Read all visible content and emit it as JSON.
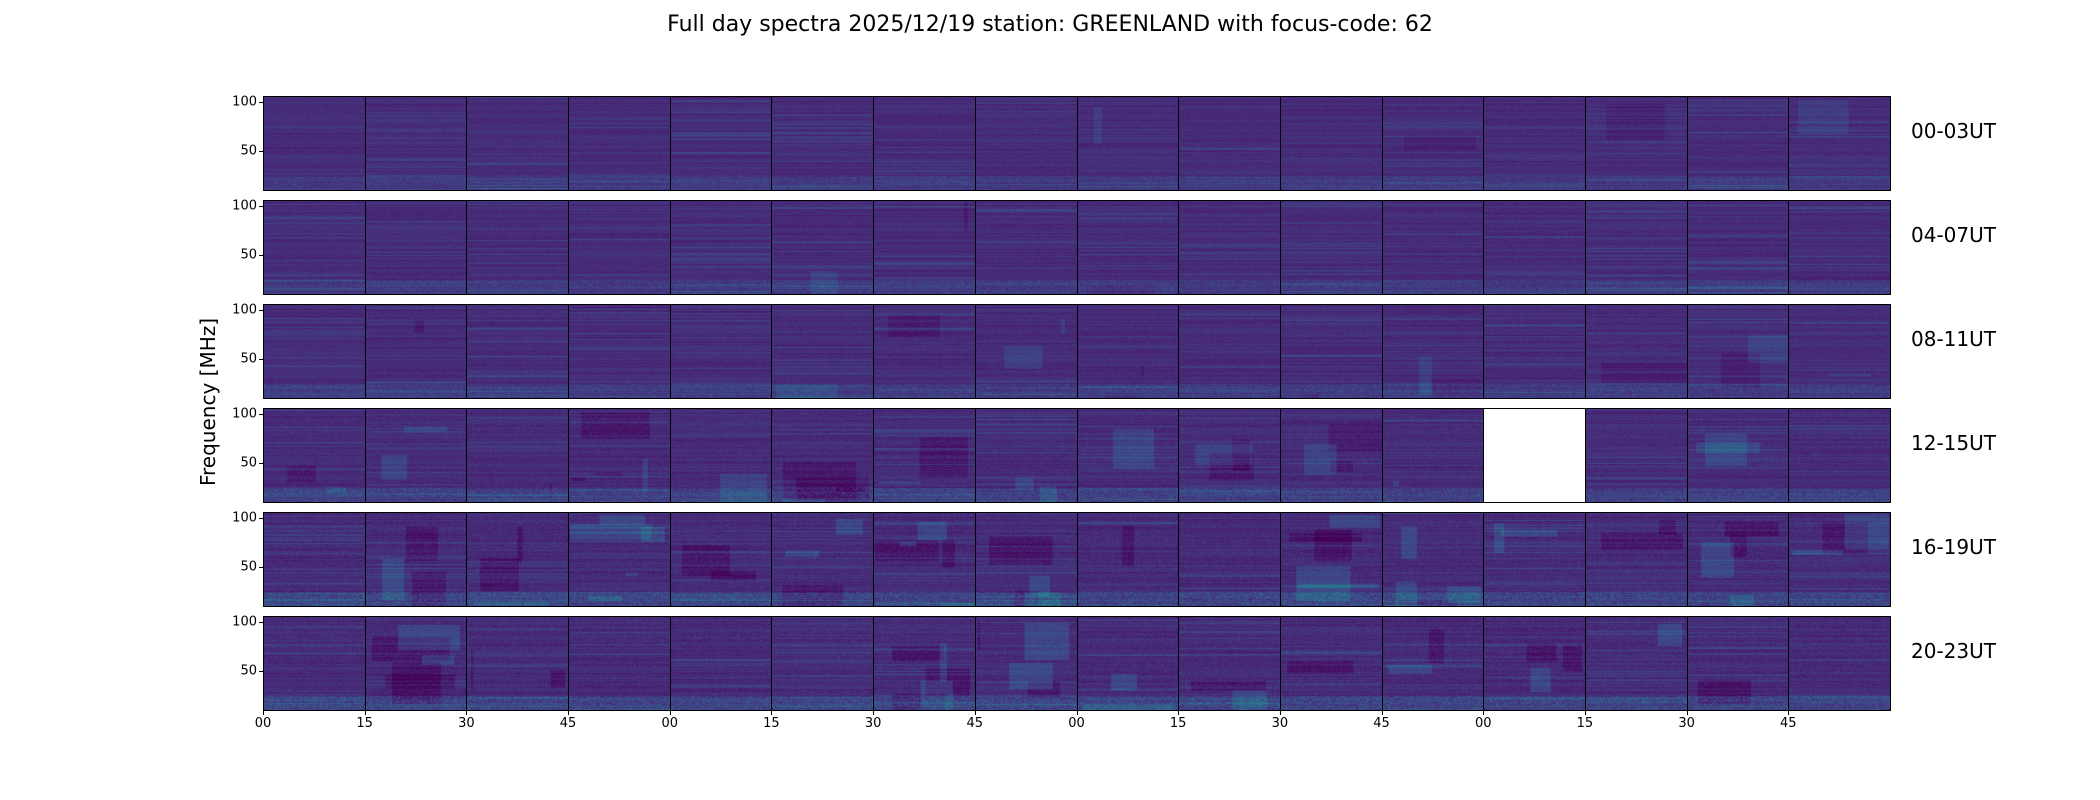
{
  "chart_data": {
    "type": "heatmap",
    "title": "Full day spectra 2025/12/19 station: GREENLAND with focus-code: 62",
    "ylabel": "Frequency [MHz]",
    "xlabel": "",
    "ylim": [
      10,
      106
    ],
    "yticks": [
      100,
      50
    ],
    "ytick_labels": [
      "100",
      "50"
    ],
    "xtick_labels": [
      "00",
      "15",
      "30",
      "45",
      "00",
      "15",
      "30",
      "45",
      "00",
      "15",
      "30",
      "45",
      "00",
      "15",
      "30",
      "45"
    ],
    "panels_per_row": 16,
    "panel_minutes": 15,
    "rows": [
      {
        "label": "00-03UT",
        "missing_panels": [],
        "activity": 0.1
      },
      {
        "label": "04-07UT",
        "missing_panels": [],
        "activity": 0.15
      },
      {
        "label": "08-11UT",
        "missing_panels": [],
        "activity": 0.2
      },
      {
        "label": "12-15UT",
        "missing_panels": [
          12
        ],
        "activity": 0.35
      },
      {
        "label": "16-19UT",
        "missing_panels": [],
        "activity": 0.5
      },
      {
        "label": "20-23UT",
        "missing_panels": [],
        "activity": 0.5
      }
    ],
    "colormap": "viridis",
    "missing_color": "#ffffff"
  }
}
